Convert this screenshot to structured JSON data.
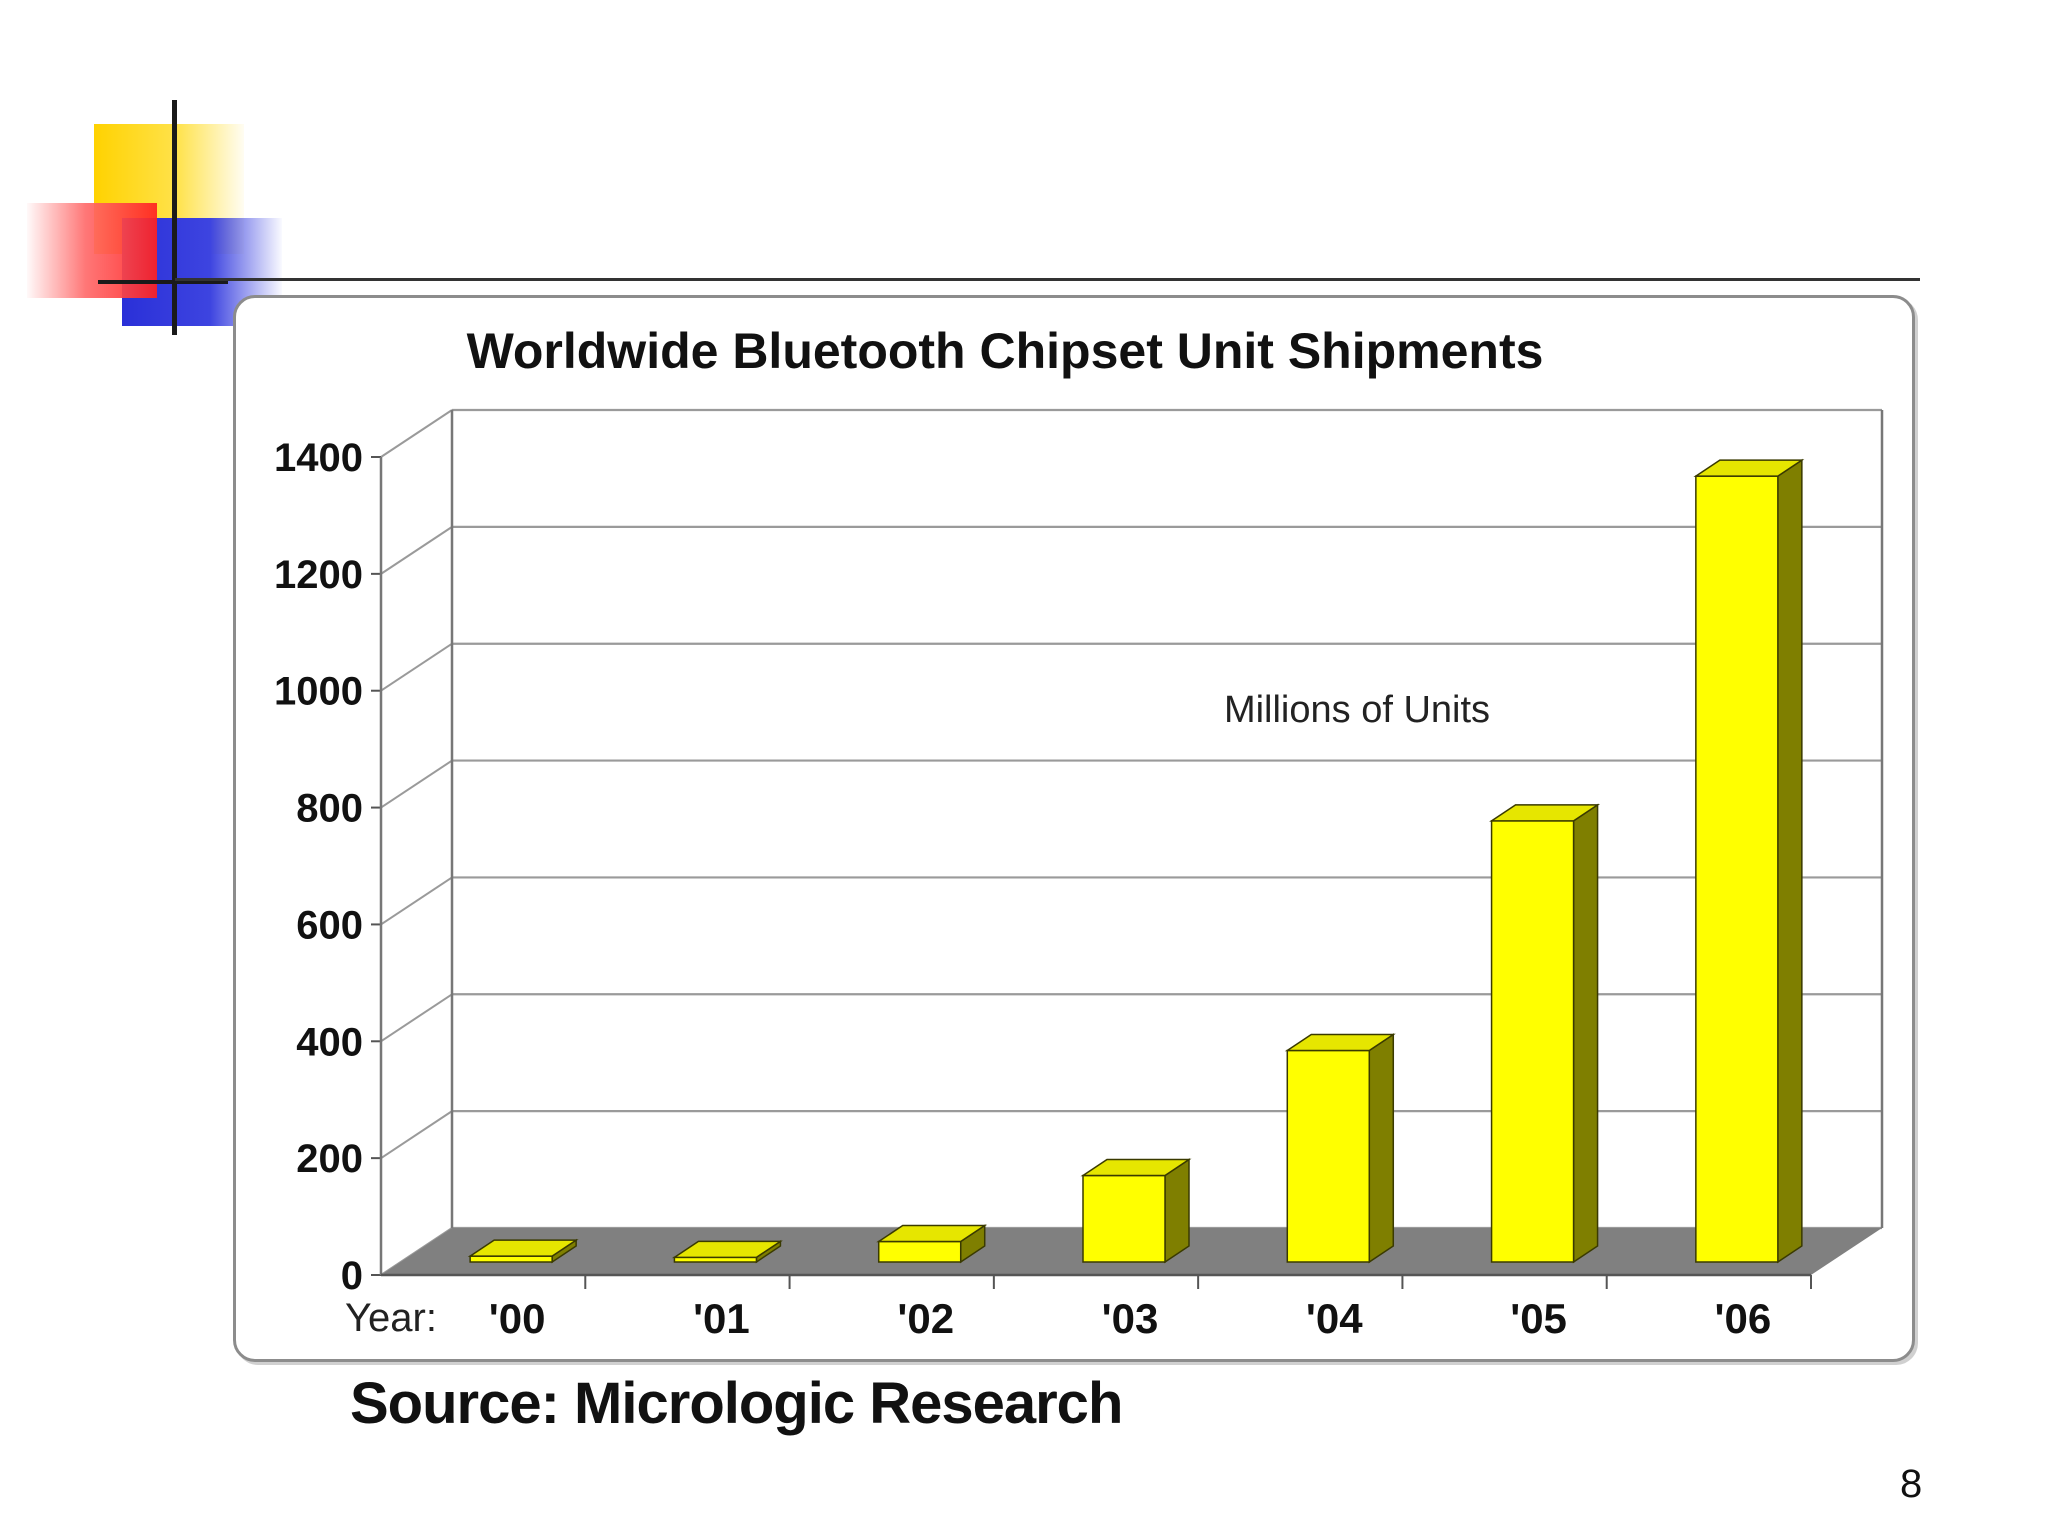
{
  "slide": {
    "source": "Source: Micrologic Research",
    "page_number": "8"
  },
  "chart_data": {
    "type": "bar",
    "title": "Worldwide Bluetooth Chipset Unit Shipments",
    "annotation": "Millions of Units",
    "xlabel": "Year:",
    "ylabel": "",
    "categories": [
      "'00",
      "'01",
      "'02",
      "'03",
      "'04",
      "'05",
      "'06"
    ],
    "values": [
      10,
      8,
      35,
      148,
      362,
      755,
      1345
    ],
    "ylim": [
      0,
      1400
    ],
    "yticks": [
      0,
      200,
      400,
      600,
      800,
      1000,
      1200,
      1400
    ],
    "grid": true,
    "three_d": true,
    "colors": {
      "bar_front": "#ffff00",
      "bar_top": "#e6e600",
      "bar_side": "#7f7f00",
      "bar_outline": "#3a3a00",
      "floor": "#808080"
    }
  }
}
